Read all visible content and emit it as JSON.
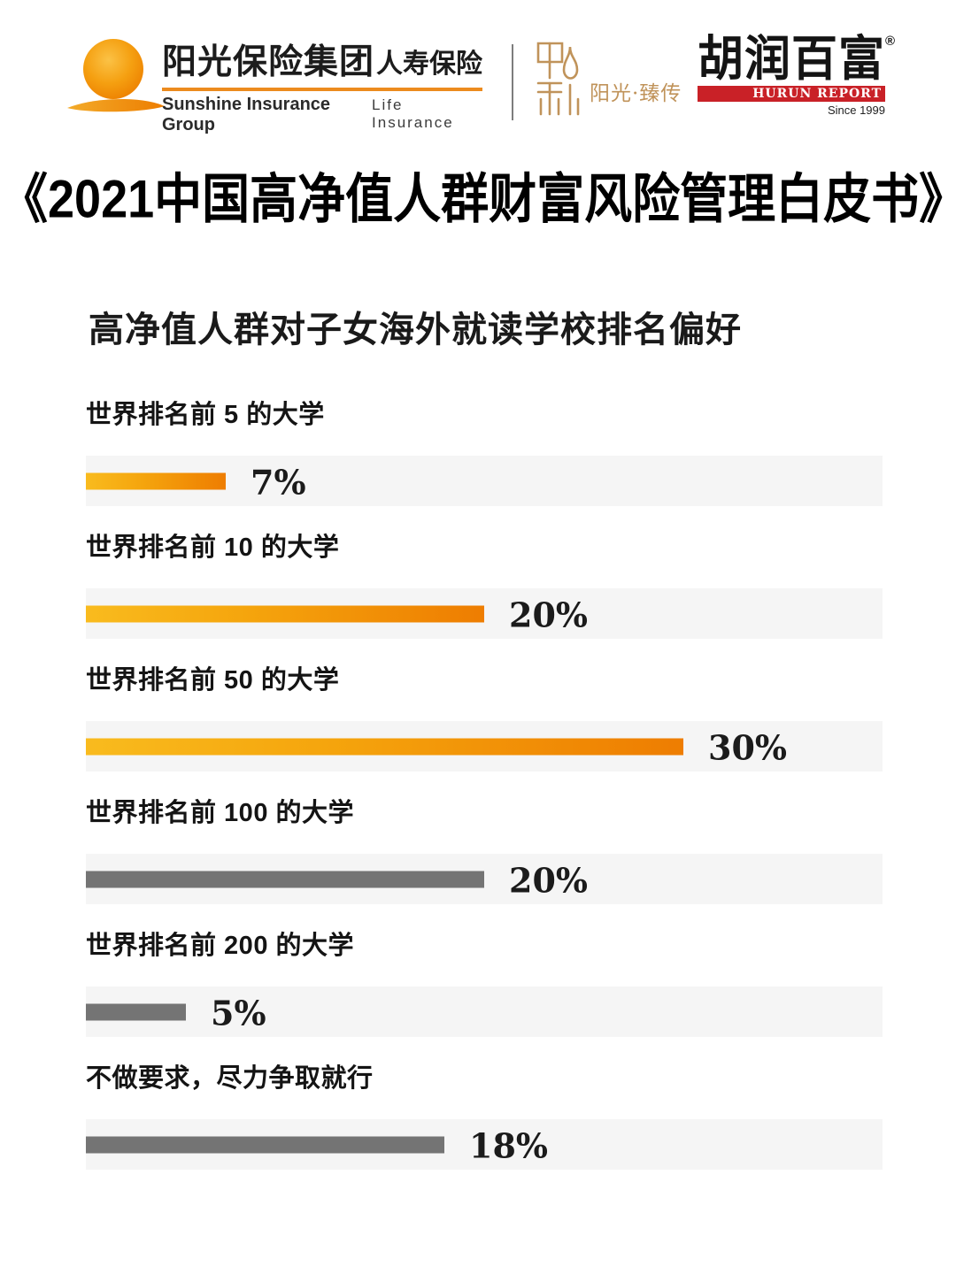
{
  "header": {
    "sunshine": {
      "cn_name": "阳光保险集团",
      "cn_sub": "人寿保险",
      "en_name": "Sunshine Insurance Group",
      "en_sub": "Life Insurance",
      "accent_color": "#ec8b1e"
    },
    "zhen": {
      "seal_char": "臻",
      "label": "阳光·臻传",
      "gold_color": "#c0935a"
    },
    "hurun": {
      "cn_name": "胡润百富",
      "reg_mark": "®",
      "banner_text": "HURUN REPORT",
      "since_text": "Since 1999",
      "banner_color": "#c92127"
    }
  },
  "main_title": "《2021中国高净值人群财富风险管理白皮书》",
  "chart_data": {
    "type": "bar",
    "orientation": "horizontal",
    "title": "高净值人群对子女海外就读学校排名偏好",
    "value_suffix": "%",
    "xlim": [
      0,
      40
    ],
    "grid": false,
    "legend": false,
    "track_color": "#f5f5f5",
    "orange_gradient": [
      "#f9bb1e",
      "#ee7d01"
    ],
    "gray_color": "#747474",
    "categories": [
      "世界排名前 5 的大学",
      "世界排名前 10 的大学",
      "世界排名前 50 的大学",
      "世界排名前 100 的大学",
      "世界排名前 200 的大学",
      "不做要求，尽力争取就行"
    ],
    "values": [
      7,
      20,
      30,
      20,
      5,
      18
    ],
    "bars": [
      {
        "label": "世界排名前 5 的大学",
        "value": 7,
        "display": "7%",
        "style": "orange"
      },
      {
        "label": "世界排名前 10 的大学",
        "value": 20,
        "display": "20%",
        "style": "orange"
      },
      {
        "label": "世界排名前 50 的大学",
        "value": 30,
        "display": "30%",
        "style": "orange"
      },
      {
        "label": "世界排名前 100 的大学",
        "value": 20,
        "display": "20%",
        "style": "gray"
      },
      {
        "label": "世界排名前 200 的大学",
        "value": 5,
        "display": "5%",
        "style": "gray"
      },
      {
        "label": "不做要求，尽力争取就行",
        "value": 18,
        "display": "18%",
        "style": "gray"
      }
    ]
  }
}
